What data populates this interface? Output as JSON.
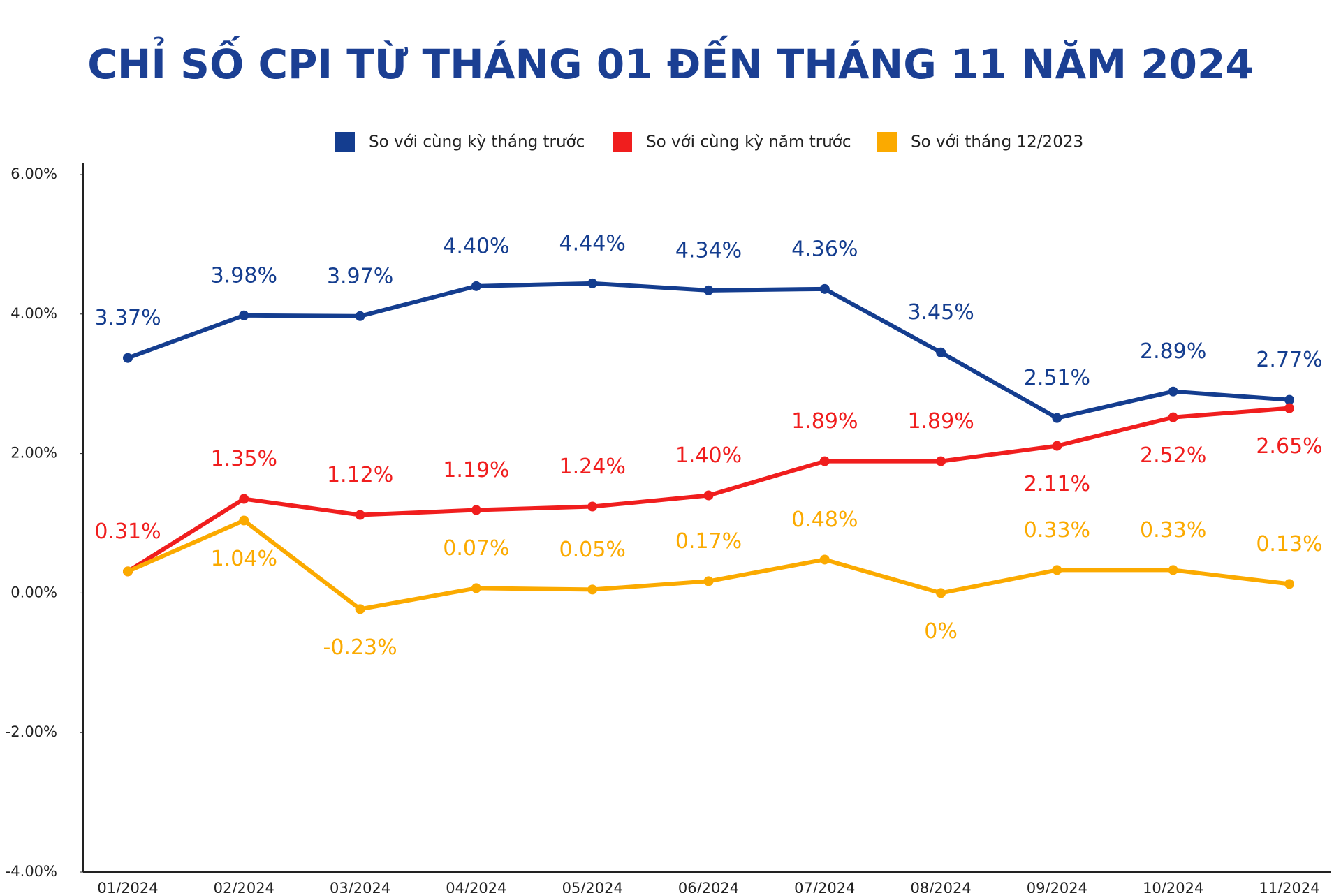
{
  "chart_data": {
    "type": "line",
    "title": "CHỈ SỐ CPI TỪ THÁNG 01 ĐẾN THÁNG 11 NĂM 2024",
    "categories": [
      "01/2024",
      "02/2024",
      "03/2024",
      "04/2024",
      "05/2024",
      "06/2024",
      "07/2024",
      "08/2024",
      "09/2024",
      "10/2024",
      "11/2024"
    ],
    "series": [
      {
        "name": "So với cùng kỳ tháng trước",
        "color": "#143d8f",
        "values": [
          3.37,
          3.98,
          3.97,
          4.4,
          4.44,
          4.34,
          4.36,
          3.45,
          2.51,
          2.89,
          2.77
        ],
        "value_labels": [
          "3.37%",
          "3.98%",
          "3.97%",
          "4.40%",
          "4.44%",
          "4.34%",
          "4.36%",
          "3.45%",
          "2.51%",
          "2.89%",
          "2.77%"
        ]
      },
      {
        "name": "So với cùng kỳ năm trước",
        "color": "#f01e1e",
        "values": [
          0.31,
          1.35,
          1.12,
          1.19,
          1.24,
          1.4,
          1.89,
          1.89,
          2.11,
          2.52,
          2.65
        ],
        "value_labels": [
          "0.31%",
          "1.35%",
          "1.12%",
          "1.19%",
          "1.24%",
          "1.40%",
          "1.89%",
          "1.89%",
          "2.11%",
          "2.52%",
          "2.65%"
        ]
      },
      {
        "name": "So với tháng 12/2023",
        "color": "#fbaa00",
        "values": [
          0.31,
          1.04,
          -0.23,
          0.07,
          0.05,
          0.17,
          0.48,
          0,
          0.33,
          0.33,
          0.13
        ],
        "value_labels": [
          null,
          "1.04%",
          "-0.23%",
          "0.07%",
          "0.05%",
          "0.17%",
          "0.48%",
          "0%",
          "0.33%",
          "0.33%",
          "0.13%"
        ]
      }
    ],
    "ylim": [
      -4,
      6
    ],
    "yticks": [
      {
        "value": -4,
        "label": "-4.00%"
      },
      {
        "value": -2,
        "label": "-2.00%"
      },
      {
        "value": 0,
        "label": "0.00%"
      },
      {
        "value": 2,
        "label": "2.00%"
      },
      {
        "value": 4,
        "label": "4.00%"
      },
      {
        "value": 6,
        "label": "6.00%"
      }
    ],
    "legend": "top",
    "grid": false
  }
}
